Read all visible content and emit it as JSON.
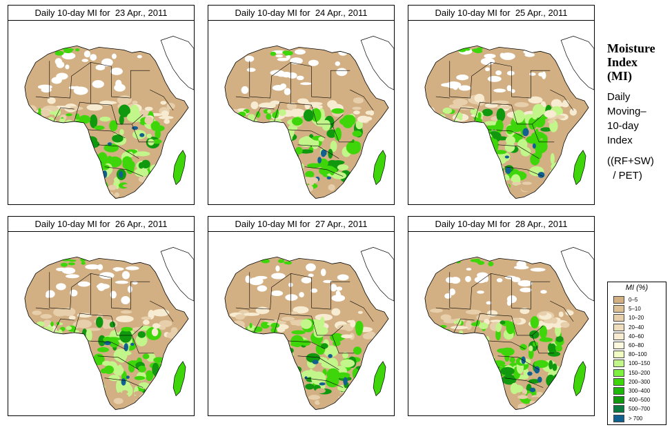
{
  "panels": [
    {
      "title": "Daily 10-day MI for  23 Apr., 2011"
    },
    {
      "title": "Daily 10-day MI for  24 Apr., 2011"
    },
    {
      "title": "Daily 10-day MI for  25 Apr., 2011"
    },
    {
      "title": "Daily 10-day MI for  26 Apr., 2011"
    },
    {
      "title": "Daily 10-day MI for  27 Apr., 2011"
    },
    {
      "title": "Daily 10-day MI for  28 Apr., 2011"
    }
  ],
  "sidebar": {
    "title_line1": "Moisture",
    "title_line2": "Index",
    "title_line3": "(MI)",
    "desc_line1": "Daily",
    "desc_line2": "Moving–",
    "desc_line3": "10-day",
    "desc_line4": "Index",
    "formula_line1": "((RF+SW)",
    "formula_line2": "  / PET)"
  },
  "legend": {
    "title": "MI (%)",
    "items": [
      {
        "label": "0–5",
        "color": "#d2b084"
      },
      {
        "label": "5–10",
        "color": "#dcc096"
      },
      {
        "label": "10–20",
        "color": "#e6cfaa"
      },
      {
        "label": "20–40",
        "color": "#efdebe"
      },
      {
        "label": "40–60",
        "color": "#f7ebd2"
      },
      {
        "label": "60–80",
        "color": "#fcf8de"
      },
      {
        "label": "80–100",
        "color": "#f0fcc2"
      },
      {
        "label": "100–150",
        "color": "#c2f58a"
      },
      {
        "label": "150–200",
        "color": "#7ef040"
      },
      {
        "label": "200–300",
        "color": "#3ed60a"
      },
      {
        "label": "300–400",
        "color": "#1eb80a"
      },
      {
        "label": "400–500",
        "color": "#10980e"
      },
      {
        "label": "500–700",
        "color": "#0a7a40"
      },
      {
        "label": "> 700",
        "color": "#126090"
      }
    ]
  },
  "map_colors": {
    "desert": "#d2b084",
    "dry": "#e6cfaa",
    "semi": "#f7ebd2",
    "pale_green": "#c2f58a",
    "green": "#3ed60a",
    "dark_green": "#10980e",
    "blue": "#126090",
    "white": "#ffffff",
    "border": "#000000"
  }
}
